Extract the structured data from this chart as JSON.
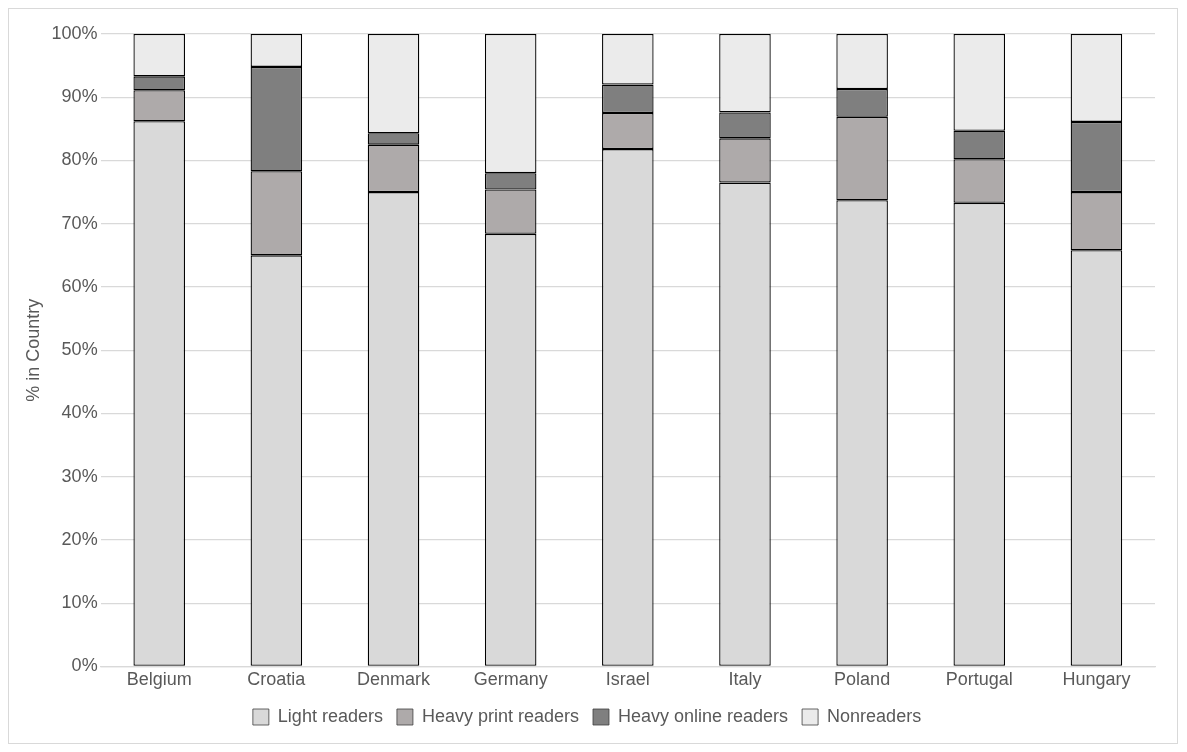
{
  "chart_data": {
    "type": "bar",
    "stacked": true,
    "ylabel": "% in Country",
    "categories": [
      "Belgium",
      "Croatia",
      "Denmark",
      "Germany",
      "Israel",
      "Italy",
      "Poland",
      "Portugal",
      "Hungary"
    ],
    "series": [
      {
        "name": "Light readers",
        "color": "#d9d9d9",
        "values": [
          86.2,
          65.0,
          75.0,
          68.4,
          81.8,
          76.5,
          73.7,
          73.3,
          65.8
        ]
      },
      {
        "name": "Heavy print readers",
        "color": "#aeaaaa",
        "values": [
          4.9,
          13.3,
          7.5,
          7.0,
          5.7,
          7.0,
          13.2,
          6.9,
          9.2
        ]
      },
      {
        "name": "Heavy online readers",
        "color": "#7f7f7f",
        "values": [
          2.2,
          16.5,
          1.8,
          2.6,
          4.5,
          4.1,
          4.4,
          4.5,
          11.1
        ]
      },
      {
        "name": "Nonreaders",
        "color": "#ebebeb",
        "values": [
          6.7,
          5.2,
          15.7,
          22.0,
          8.0,
          12.4,
          8.7,
          15.3,
          13.9
        ]
      }
    ],
    "ylim": [
      0,
      100
    ],
    "yticks": [
      {
        "value": 0,
        "label": "0%"
      },
      {
        "value": 10,
        "label": "10%"
      },
      {
        "value": 20,
        "label": "20%"
      },
      {
        "value": 30,
        "label": "30%"
      },
      {
        "value": 40,
        "label": "40%"
      },
      {
        "value": 50,
        "label": "50%"
      },
      {
        "value": 60,
        "label": "60%"
      },
      {
        "value": 70,
        "label": "70%"
      },
      {
        "value": 80,
        "label": "80%"
      },
      {
        "value": 90,
        "label": "90%"
      },
      {
        "value": 100,
        "label": "100%"
      }
    ],
    "grid": "y",
    "legend": "bottom"
  }
}
